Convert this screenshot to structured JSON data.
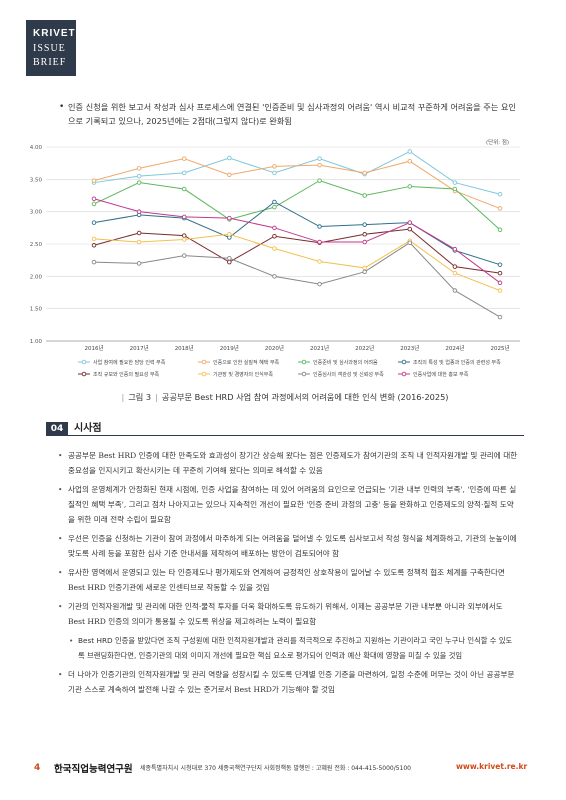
{
  "logo": {
    "line1": "KRIVET",
    "line2": "ISSUE",
    "line3": "BRIEF"
  },
  "intro_text": "인증 신청을 위한 보고서 작성과 심사 프로세스에 연결된 '인증준비 및 심사과정의 어려움' 역시 비교적 꾸준하게 어려움을 주는 요인으로 기록되고 있으나, 2025년에는 2점대(그렇지 않다)로 완화됨",
  "bullet_glyph": "•",
  "unit_label": "(단위: 점)",
  "chart_data": {
    "type": "line",
    "categories": [
      "2016년",
      "2017년",
      "2018년",
      "2019년",
      "2020년",
      "2021년",
      "2022년",
      "2023년",
      "2024년",
      "2025년"
    ],
    "ylim": [
      1.0,
      4.0
    ],
    "yticks": [
      "1.00",
      "1.50",
      "2.00",
      "2.50",
      "3.00",
      "3.50",
      "4.00"
    ],
    "grid": true,
    "legend_position": "bottom",
    "series": [
      {
        "name": "사업 참여에 필요한 담당 인력 부족",
        "color": "#7fc8d8",
        "values": [
          3.45,
          3.55,
          3.6,
          3.83,
          3.6,
          3.82,
          3.58,
          3.93,
          3.45,
          3.27
        ]
      },
      {
        "name": "인증으로 인한 실질적 혜택 부족",
        "color": "#f0a868",
        "values": [
          3.48,
          3.67,
          3.82,
          3.57,
          3.7,
          3.72,
          3.6,
          3.78,
          3.32,
          3.05
        ]
      },
      {
        "name": "인증준비 및 심사과정의 어려움",
        "color": "#5cb85c",
        "values": [
          3.12,
          3.45,
          3.35,
          2.88,
          3.07,
          3.48,
          3.25,
          3.39,
          3.35,
          2.72
        ]
      },
      {
        "name": "조직의 특성 및 업종과 인증의 관련성 부족",
        "color": "#2e6f8a",
        "values": [
          2.83,
          2.95,
          2.9,
          2.6,
          3.15,
          2.77,
          2.8,
          2.83,
          2.4,
          2.18
        ]
      },
      {
        "name": "조직 규모와 인증의 필요성 부족",
        "color": "#7a2a2a",
        "values": [
          2.48,
          2.67,
          2.63,
          2.22,
          2.62,
          2.52,
          2.65,
          2.73,
          2.15,
          2.05
        ]
      },
      {
        "name": "기관장 및 경영자의 인식부족",
        "color": "#f2c14e",
        "values": [
          2.58,
          2.53,
          2.57,
          2.65,
          2.43,
          2.23,
          2.13,
          2.55,
          2.05,
          1.78
        ]
      },
      {
        "name": "인증심사의 객관성 및 신뢰성 부족",
        "color": "#888888",
        "values": [
          2.22,
          2.2,
          2.32,
          2.28,
          2.0,
          1.88,
          2.07,
          2.52,
          1.78,
          1.37
        ]
      },
      {
        "name": "인증사업에 대한 홍보 부족",
        "color": "#c03a8a",
        "values": [
          3.2,
          3.0,
          2.92,
          2.9,
          2.75,
          2.53,
          2.53,
          2.83,
          2.42,
          1.9
        ]
      }
    ]
  },
  "caption": {
    "label": "그림 3",
    "text": "공공부문 Best HRD 사업 참여 과정에서의 어려움에 대한 인식 변화 (2016-2025)"
  },
  "section": {
    "number": "04",
    "title": "시사점"
  },
  "bullets": [
    {
      "text": "공공부문 Best HRD 인증에 대한 만족도와 효과성이 장기간 상승해 왔다는 점은 인증제도가 참여기관의 조직 내 인적자원개발 및 관리에 대한 중요성을 인지시키고 확산시키는 데 꾸준히 기여해 왔다는 의미로 해석할 수 있음"
    },
    {
      "text": "사업의 운영체계가 안정화된 현재 시점에, 인증 사업을 참여하는 데 있어 어려움의 요인으로 언급되는 '기관 내부 인력의 부족', '인증에 따른 실질적인 혜택 부족', 그리고 점차 나아지고는 있으나 지속적인 개선이 필요한 '인증 준비 과정의 고충' 등을 완화하고 인증제도의 양적·질적 도약을 위한 미래 전략 수립이 필요함"
    },
    {
      "text": "우선은 인증을 신청하는 기관이 참여 과정에서 마주하게 되는 어려움을 덜어낼 수 있도록 심사보고서 작성 형식을 체계화하고, 기관의 눈높이에 맞도록 사례 등을 포함한 심사 기준 안내서를 제작하여 배포하는 방안이 검토되어야 함"
    },
    {
      "text": "유사한 영역에서 운영되고 있는 타 인증제도나 평가제도와 연계하여 긍정적인 상호작용이 일어날 수 있도록 정책적 협조 체계를 구축한다면 Best HRD 인증기관에 새로운 인센티브로 작동할 수 있을 것임"
    },
    {
      "text": "기관의 인적자원개발 및 관리에 대한 인적·물적 투자를 더욱 확대하도록 유도하기 위해서, 이제는 공공부문 기관 내부뿐 아니라 외부에서도 Best HRD 인증의 의미가 통용될 수 있도록 위상을 제고하려는 노력이 필요함"
    },
    {
      "text": "Best HRD 인증을 받았다면 조직 구성원에 대한 인적자원개발과 관리를 적극적으로 추진하고 지원하는 기관이라고 국민 누구나 인식할 수 있도록 브랜딩화한다면, 인증기관의 대외 이미지 개선에 필요한 핵심 요소로 평가되어 인력과 예산 확대에 영향을 미칠 수 있을 것임",
      "sub": true
    },
    {
      "text": "더 나아가 인증기관의 인적자원개발 및 관리 역량을 성장시킬 수 있도록 단계별 인증 기준을 마련하여, 일정 수준에 머무는 것이 아닌 공공부문 기관 스스로 계속하여 발전해 나갈 수 있는 준거로서 Best HRD가 기능해야 할 것임"
    }
  ],
  "footer": {
    "page": "4",
    "org": "한국직업능력연구원",
    "address": "세종특별자치시 시청대로 370 세종국책연구단지 사회정책동   발행인 : 고혜원   전화 : 044-415-5000/5100",
    "url": "www.krivet.re.kr",
    "accent_color": "#d24a18"
  }
}
